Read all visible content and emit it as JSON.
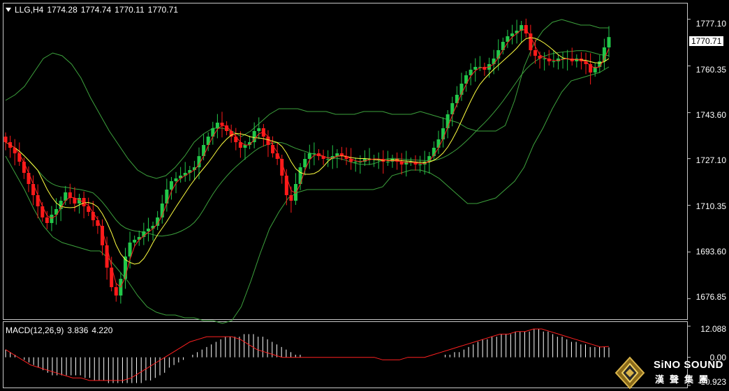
{
  "header": {
    "symbol": "LLG,H4",
    "open": "1774.28",
    "high": "1774.74",
    "low": "1770.11",
    "close": "1770.71"
  },
  "macd_header": {
    "label": "MACD(12,26,9)",
    "main": "3.836",
    "signal": "4.220"
  },
  "price_axis": [
    "1777.10",
    "1760.35",
    "1743.60",
    "1727.10",
    "1710.35",
    "1693.60",
    "1676.85"
  ],
  "current_price": "1770.71",
  "macd_axis": [
    "12.088",
    "0.00",
    "-10.923"
  ],
  "watermark": {
    "brand": "SiNO SOUND",
    "chinese": "漢聲集團"
  },
  "colors": {
    "background": "#000000",
    "up_candle": "#22c84a",
    "down_candle": "#ff1a1a",
    "bands": "#3da23d",
    "ma_fast": "#ff2020",
    "ma_slow": "#ffff40",
    "macd_hist": "#ffffff",
    "macd_signal": "#ff2020"
  },
  "chart_data": [
    {
      "type": "candlestick",
      "title": "LLG,H4",
      "ylim": [
        1670.0,
        1782.5
      ],
      "indicators": [
        "Bollinger Bands",
        "Moving Average (fast)",
        "Moving Average (slow)"
      ],
      "close_series": [
        1733,
        1731,
        1729,
        1726,
        1722,
        1718,
        1714,
        1710,
        1706,
        1704,
        1707,
        1709,
        1712,
        1715,
        1713,
        1711,
        1713,
        1710,
        1708,
        1705,
        1703,
        1696,
        1688,
        1681,
        1678,
        1684,
        1692,
        1697,
        1698,
        1699,
        1701,
        1702,
        1703,
        1706,
        1711,
        1716,
        1719,
        1720,
        1721,
        1722,
        1723,
        1724,
        1728,
        1732,
        1735,
        1738,
        1740,
        1739,
        1737,
        1735,
        1733,
        1731,
        1732,
        1733,
        1737,
        1738,
        1735,
        1732,
        1729,
        1727,
        1721,
        1714,
        1712,
        1718,
        1724,
        1727,
        1729,
        1729,
        1728,
        1727,
        1727,
        1728,
        1729,
        1728,
        1727,
        1726,
        1726,
        1726,
        1727,
        1727,
        1727,
        1727,
        1726,
        1726,
        1727,
        1726,
        1725,
        1726,
        1726,
        1725,
        1725,
        1726,
        1728,
        1731,
        1734,
        1738,
        1743,
        1747,
        1750,
        1754,
        1757,
        1759,
        1760,
        1760,
        1759,
        1761,
        1763,
        1766,
        1769,
        1771,
        1772,
        1773,
        1775,
        1772,
        1766,
        1764,
        1763,
        1763,
        1762,
        1762,
        1763,
        1763,
        1763,
        1762,
        1763,
        1762,
        1761,
        1758,
        1760,
        1762,
        1767,
        1770.71
      ],
      "bb_upper": [
        1748,
        1750,
        1753,
        1758,
        1763,
        1765,
        1764,
        1761,
        1756,
        1749,
        1743,
        1737,
        1732,
        1727,
        1723,
        1721,
        1720,
        1721,
        1724,
        1728,
        1733,
        1736,
        1738,
        1738,
        1737,
        1735,
        1737,
        1740,
        1743,
        1745,
        1745,
        1745,
        1744,
        1744,
        1744,
        1743,
        1743,
        1743,
        1744,
        1744,
        1744,
        1743,
        1743,
        1743,
        1744,
        1743,
        1742,
        1741,
        1740,
        1738,
        1737,
        1737,
        1737,
        1739,
        1748,
        1760,
        1768,
        1773,
        1776,
        1777,
        1776,
        1775,
        1775,
        1774,
        1774
      ],
      "bb_lower": [
        1728,
        1722,
        1716,
        1709,
        1703,
        1699,
        1697,
        1696,
        1695,
        1694,
        1694,
        1691,
        1687,
        1683,
        1678,
        1674,
        1672,
        1671,
        1671,
        1670,
        1670,
        1669,
        1669,
        1668,
        1669,
        1674,
        1683,
        1693,
        1702,
        1708,
        1713,
        1715,
        1716,
        1716,
        1716,
        1716,
        1716,
        1716,
        1716,
        1716,
        1717,
        1721,
        1722,
        1723,
        1723,
        1722,
        1720,
        1717,
        1714,
        1711,
        1711,
        1712,
        1713,
        1716,
        1719,
        1724,
        1732,
        1738,
        1745,
        1751,
        1755,
        1756,
        1757,
        1758,
        1760
      ]
    },
    {
      "type": "bar",
      "title": "MACD(12,26,9)",
      "ylim": [
        -10.923,
        12.088
      ],
      "series": [
        {
          "name": "MACD",
          "values": [
            3,
            2,
            1,
            0,
            -1,
            -2,
            -3,
            -4,
            -5,
            -6,
            -7,
            -7,
            -7,
            -7,
            -7,
            -7,
            -7,
            -8,
            -8,
            -9,
            -9,
            -9,
            -10,
            -10,
            -10,
            -10,
            -10,
            -10,
            -10,
            -10,
            -9,
            -9,
            -8,
            -7,
            -6,
            -4,
            -3,
            -2,
            -1,
            0,
            1,
            2,
            3,
            4,
            5,
            6,
            7,
            8,
            8,
            8,
            8,
            9,
            9,
            9,
            8,
            8,
            7,
            6,
            5,
            4,
            3,
            2,
            1,
            1,
            0,
            0,
            0,
            0,
            0,
            0,
            0,
            0,
            0,
            0,
            0,
            0,
            0,
            0,
            0,
            0,
            0,
            0,
            0,
            0,
            0,
            0,
            0,
            0,
            0,
            0,
            0,
            0,
            0,
            0,
            1,
            1,
            2,
            2,
            3,
            4,
            5,
            6,
            7,
            7,
            8,
            8,
            9,
            9,
            9,
            10,
            10,
            10,
            10,
            11,
            11,
            10,
            10,
            9,
            8,
            8,
            7,
            6,
            6,
            5,
            5,
            4,
            4,
            4,
            4,
            3.836
          ]
        },
        {
          "name": "Signal",
          "values": [
            3,
            1,
            -1,
            -3,
            -4,
            -5,
            -6,
            -7,
            -8,
            -8,
            -9,
            -9,
            -9,
            -9,
            -9,
            -8,
            -6,
            -4,
            -2,
            0,
            2,
            4,
            6,
            7,
            8,
            8,
            8,
            8,
            7,
            5,
            3,
            2,
            1,
            0,
            0,
            0,
            0,
            0,
            0,
            0,
            0,
            0,
            0,
            0,
            0,
            -1,
            -1,
            -1,
            0,
            0,
            0,
            1,
            2,
            3,
            4,
            5,
            6,
            7,
            8,
            9,
            9,
            10,
            10,
            11,
            11,
            10,
            9,
            8,
            7,
            6,
            5,
            4,
            4.22
          ]
        }
      ]
    }
  ]
}
